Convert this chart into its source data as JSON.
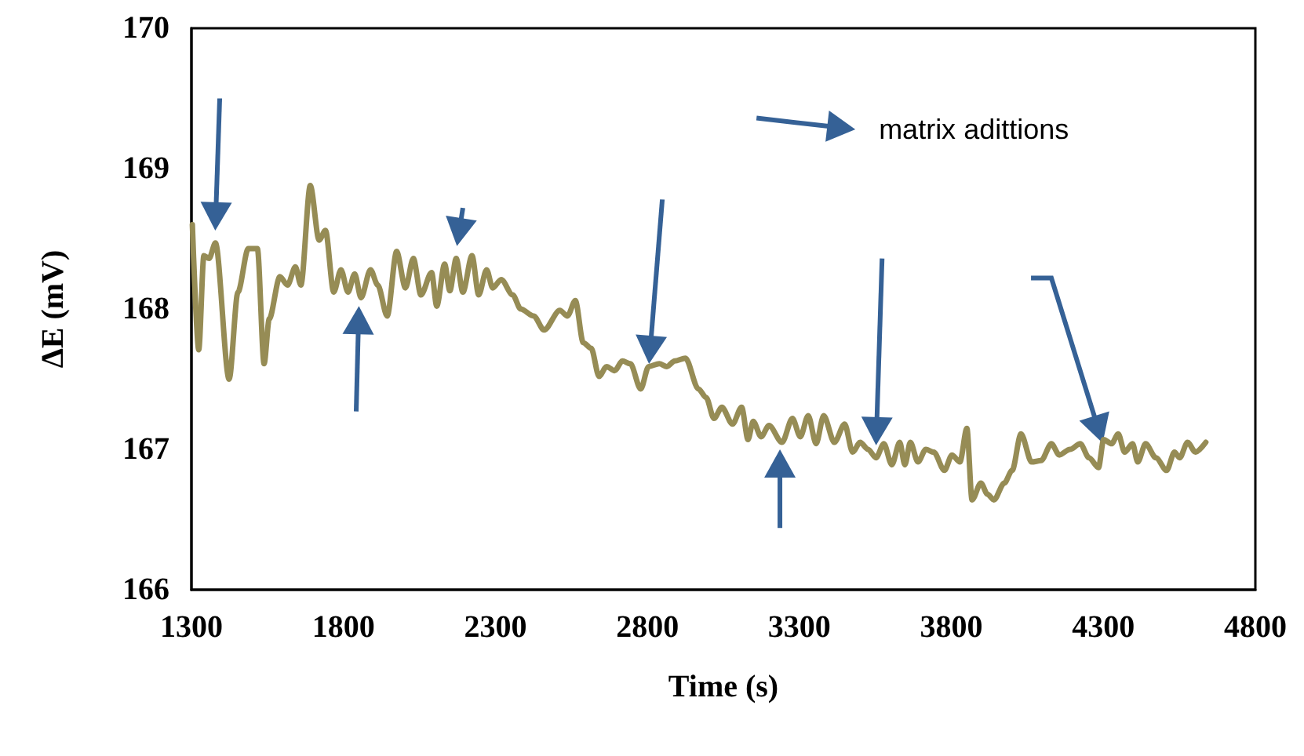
{
  "chart_data": {
    "type": "line",
    "xlabel": "Time (s)",
    "ylabel": "ΔE (mV)",
    "annotations": [
      "matrix adittions"
    ],
    "xlim": [
      1300,
      4800
    ],
    "xticks": [
      1300,
      1800,
      2300,
      2800,
      3300,
      3800,
      4300,
      4800
    ],
    "ylim": [
      166,
      170
    ],
    "yticks": [
      166,
      167,
      168,
      169,
      170
    ],
    "grid": false,
    "marker": "none",
    "line_style": "solid",
    "series": [
      {
        "color": "#968c55",
        "x": [
          1303,
          1324,
          1341,
          1358,
          1379,
          1424,
          1453,
          1487,
          1517,
          1539,
          1556,
          1591,
          1616,
          1642,
          1660,
          1691,
          1720,
          1741,
          1768,
          1792,
          1815,
          1837,
          1858,
          1889,
          1913,
          1944,
          1975,
          2004,
          2030,
          2055,
          2090,
          2107,
          2133,
          2150,
          2171,
          2193,
          2223,
          2245,
          2271,
          2291,
          2319,
          2357,
          2383,
          2426,
          2460,
          2512,
          2537,
          2563,
          2589,
          2615,
          2641,
          2666,
          2692,
          2718,
          2744,
          2778,
          2804,
          2839,
          2864,
          2890,
          2925,
          2968,
          2993,
          3019,
          3045,
          3080,
          3110,
          3131,
          3148,
          3174,
          3200,
          3243,
          3277,
          3303,
          3329,
          3355,
          3380,
          3415,
          3449,
          3475,
          3500,
          3526,
          3552,
          3578,
          3604,
          3630,
          3647,
          3665,
          3690,
          3716,
          3742,
          3777,
          3802,
          3828,
          3851,
          3868,
          3897,
          3919,
          3940,
          3974,
          4000,
          4029,
          4064,
          4095,
          4129,
          4155,
          4190,
          4224,
          4253,
          4284,
          4301,
          4327,
          4349,
          4370,
          4396,
          4413,
          4439,
          4473,
          4508,
          4534,
          4551,
          4577,
          4603,
          4637
        ],
        "values": [
          168.6,
          167.71,
          168.38,
          168.36,
          168.47,
          167.5,
          168.12,
          168.43,
          168.43,
          167.61,
          167.93,
          168.23,
          168.17,
          168.3,
          168.17,
          168.88,
          168.49,
          168.56,
          168.12,
          168.28,
          168.12,
          168.25,
          168.08,
          168.28,
          168.17,
          167.95,
          168.41,
          168.15,
          168.36,
          168.1,
          168.26,
          168.02,
          168.32,
          168.13,
          168.36,
          168.12,
          168.38,
          168.1,
          168.28,
          168.15,
          168.21,
          168.1,
          168.0,
          167.95,
          167.85,
          167.99,
          167.95,
          168.06,
          167.76,
          167.72,
          167.52,
          167.59,
          167.56,
          167.63,
          167.61,
          167.43,
          167.59,
          167.61,
          167.59,
          167.63,
          167.65,
          167.43,
          167.37,
          167.22,
          167.3,
          167.18,
          167.3,
          167.07,
          167.2,
          167.09,
          167.17,
          167.05,
          167.22,
          167.09,
          167.24,
          167.04,
          167.24,
          167.05,
          167.18,
          166.98,
          167.05,
          167.0,
          166.94,
          167.04,
          166.89,
          167.05,
          166.89,
          167.05,
          166.91,
          167.0,
          166.98,
          166.85,
          166.96,
          166.91,
          167.15,
          166.64,
          166.76,
          166.68,
          166.64,
          166.76,
          166.85,
          167.11,
          166.91,
          166.92,
          167.04,
          166.96,
          167.0,
          167.04,
          166.94,
          166.87,
          167.07,
          167.04,
          167.11,
          166.98,
          167.04,
          166.91,
          167.04,
          166.94,
          166.85,
          166.98,
          166.94,
          167.05,
          166.98,
          167.05
        ]
      }
    ]
  }
}
